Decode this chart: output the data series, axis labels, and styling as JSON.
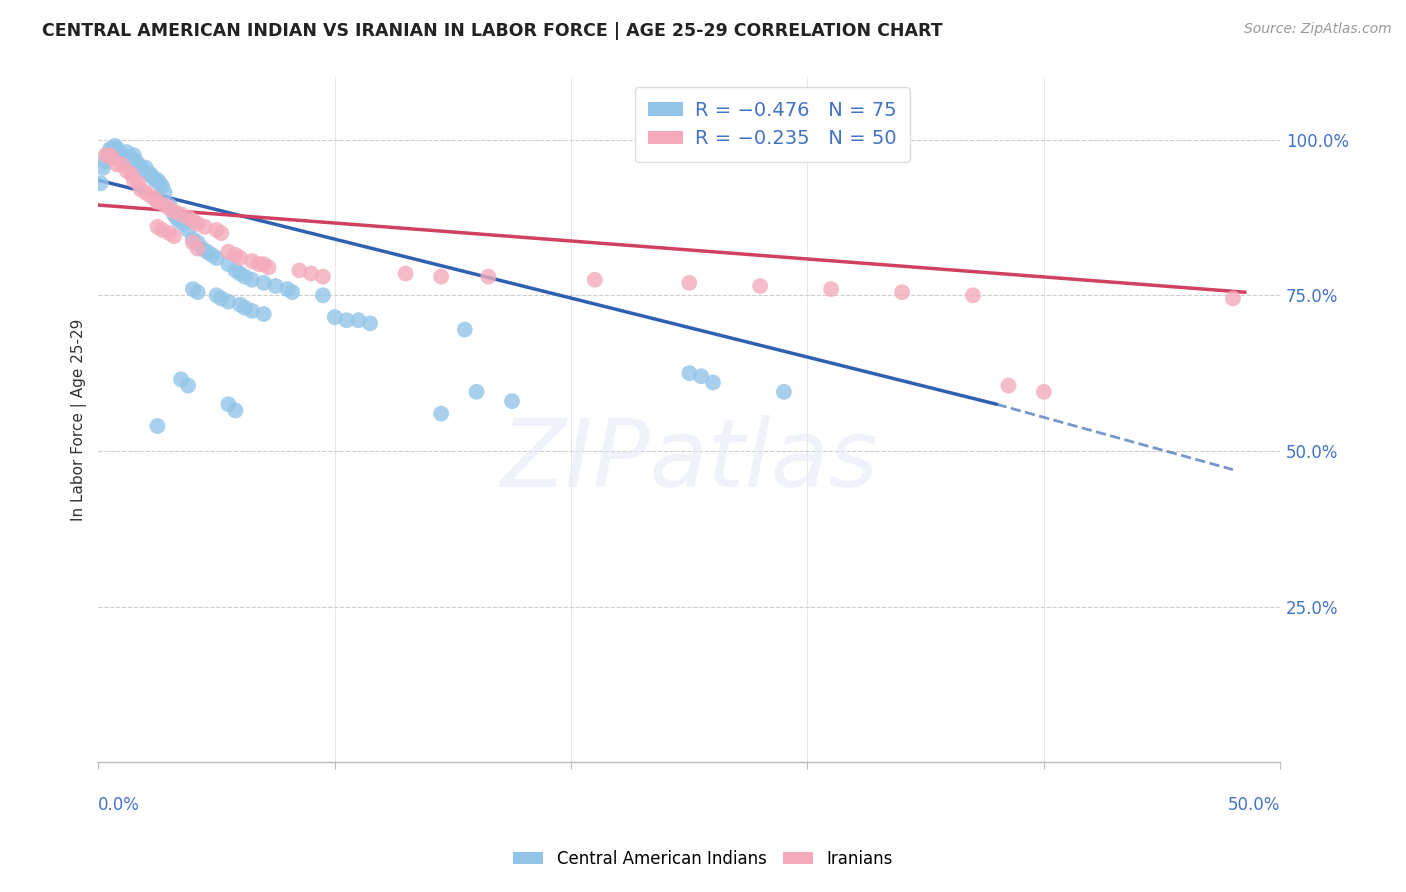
{
  "title": "CENTRAL AMERICAN INDIAN VS IRANIAN IN LABOR FORCE | AGE 25-29 CORRELATION CHART",
  "source": "Source: ZipAtlas.com",
  "ylabel": "In Labor Force | Age 25-29",
  "blue_color": "#92C5E8",
  "pink_color": "#F4AABC",
  "blue_line_color": "#3060B0",
  "pink_line_color": "#D04060",
  "blue_scatter": [
    [
      0.001,
      0.93
    ],
    [
      0.002,
      0.955
    ],
    [
      0.003,
      0.965
    ],
    [
      0.004,
      0.975
    ],
    [
      0.005,
      0.985
    ],
    [
      0.006,
      0.985
    ],
    [
      0.007,
      0.99
    ],
    [
      0.008,
      0.985
    ],
    [
      0.009,
      0.98
    ],
    [
      0.01,
      0.975
    ],
    [
      0.011,
      0.97
    ],
    [
      0.012,
      0.98
    ],
    [
      0.013,
      0.965
    ],
    [
      0.014,
      0.97
    ],
    [
      0.015,
      0.975
    ],
    [
      0.016,
      0.965
    ],
    [
      0.017,
      0.96
    ],
    [
      0.018,
      0.955
    ],
    [
      0.019,
      0.95
    ],
    [
      0.02,
      0.955
    ],
    [
      0.021,
      0.945
    ],
    [
      0.022,
      0.945
    ],
    [
      0.023,
      0.94
    ],
    [
      0.024,
      0.935
    ],
    [
      0.025,
      0.935
    ],
    [
      0.026,
      0.93
    ],
    [
      0.027,
      0.925
    ],
    [
      0.028,
      0.915
    ],
    [
      0.03,
      0.895
    ],
    [
      0.032,
      0.88
    ],
    [
      0.033,
      0.875
    ],
    [
      0.034,
      0.87
    ],
    [
      0.036,
      0.865
    ],
    [
      0.038,
      0.855
    ],
    [
      0.04,
      0.84
    ],
    [
      0.042,
      0.835
    ],
    [
      0.044,
      0.825
    ],
    [
      0.046,
      0.82
    ],
    [
      0.048,
      0.815
    ],
    [
      0.05,
      0.81
    ],
    [
      0.055,
      0.8
    ],
    [
      0.058,
      0.79
    ],
    [
      0.06,
      0.785
    ],
    [
      0.062,
      0.78
    ],
    [
      0.065,
      0.775
    ],
    [
      0.07,
      0.77
    ],
    [
      0.075,
      0.765
    ],
    [
      0.08,
      0.76
    ],
    [
      0.082,
      0.755
    ],
    [
      0.095,
      0.75
    ],
    [
      0.04,
      0.76
    ],
    [
      0.042,
      0.755
    ],
    [
      0.05,
      0.75
    ],
    [
      0.052,
      0.745
    ],
    [
      0.055,
      0.74
    ],
    [
      0.06,
      0.735
    ],
    [
      0.062,
      0.73
    ],
    [
      0.065,
      0.725
    ],
    [
      0.07,
      0.72
    ],
    [
      0.1,
      0.715
    ],
    [
      0.105,
      0.71
    ],
    [
      0.11,
      0.71
    ],
    [
      0.115,
      0.705
    ],
    [
      0.155,
      0.695
    ],
    [
      0.035,
      0.615
    ],
    [
      0.038,
      0.605
    ],
    [
      0.055,
      0.575
    ],
    [
      0.058,
      0.565
    ],
    [
      0.025,
      0.54
    ],
    [
      0.16,
      0.595
    ],
    [
      0.175,
      0.58
    ],
    [
      0.145,
      0.56
    ],
    [
      0.25,
      0.625
    ],
    [
      0.255,
      0.62
    ],
    [
      0.26,
      0.61
    ],
    [
      0.29,
      0.595
    ]
  ],
  "pink_scatter": [
    [
      0.003,
      0.975
    ],
    [
      0.005,
      0.975
    ],
    [
      0.006,
      0.97
    ],
    [
      0.008,
      0.96
    ],
    [
      0.01,
      0.96
    ],
    [
      0.012,
      0.95
    ],
    [
      0.014,
      0.945
    ],
    [
      0.015,
      0.935
    ],
    [
      0.017,
      0.93
    ],
    [
      0.018,
      0.92
    ],
    [
      0.02,
      0.915
    ],
    [
      0.022,
      0.91
    ],
    [
      0.024,
      0.905
    ],
    [
      0.025,
      0.9
    ],
    [
      0.028,
      0.895
    ],
    [
      0.03,
      0.89
    ],
    [
      0.032,
      0.885
    ],
    [
      0.035,
      0.88
    ],
    [
      0.038,
      0.875
    ],
    [
      0.04,
      0.87
    ],
    [
      0.042,
      0.865
    ],
    [
      0.045,
      0.86
    ],
    [
      0.05,
      0.855
    ],
    [
      0.052,
      0.85
    ],
    [
      0.025,
      0.86
    ],
    [
      0.027,
      0.855
    ],
    [
      0.03,
      0.85
    ],
    [
      0.032,
      0.845
    ],
    [
      0.04,
      0.835
    ],
    [
      0.042,
      0.825
    ],
    [
      0.055,
      0.82
    ],
    [
      0.058,
      0.815
    ],
    [
      0.06,
      0.81
    ],
    [
      0.065,
      0.805
    ],
    [
      0.068,
      0.8
    ],
    [
      0.07,
      0.8
    ],
    [
      0.072,
      0.795
    ],
    [
      0.085,
      0.79
    ],
    [
      0.09,
      0.785
    ],
    [
      0.095,
      0.78
    ],
    [
      0.13,
      0.785
    ],
    [
      0.145,
      0.78
    ],
    [
      0.165,
      0.78
    ],
    [
      0.21,
      0.775
    ],
    [
      0.25,
      0.77
    ],
    [
      0.28,
      0.765
    ],
    [
      0.31,
      0.76
    ],
    [
      0.34,
      0.755
    ],
    [
      0.37,
      0.75
    ],
    [
      0.48,
      0.745
    ],
    [
      0.385,
      0.605
    ],
    [
      0.4,
      0.595
    ]
  ],
  "xlim": [
    0,
    0.5
  ],
  "ylim": [
    0.0,
    1.1
  ],
  "yticks": [
    0.25,
    0.5,
    0.75,
    1.0
  ],
  "ytick_labels": [
    "25.0%",
    "50.0%",
    "75.0%",
    "100.0%"
  ],
  "xtick_labels_show": [
    "0.0%",
    "50.0%"
  ]
}
